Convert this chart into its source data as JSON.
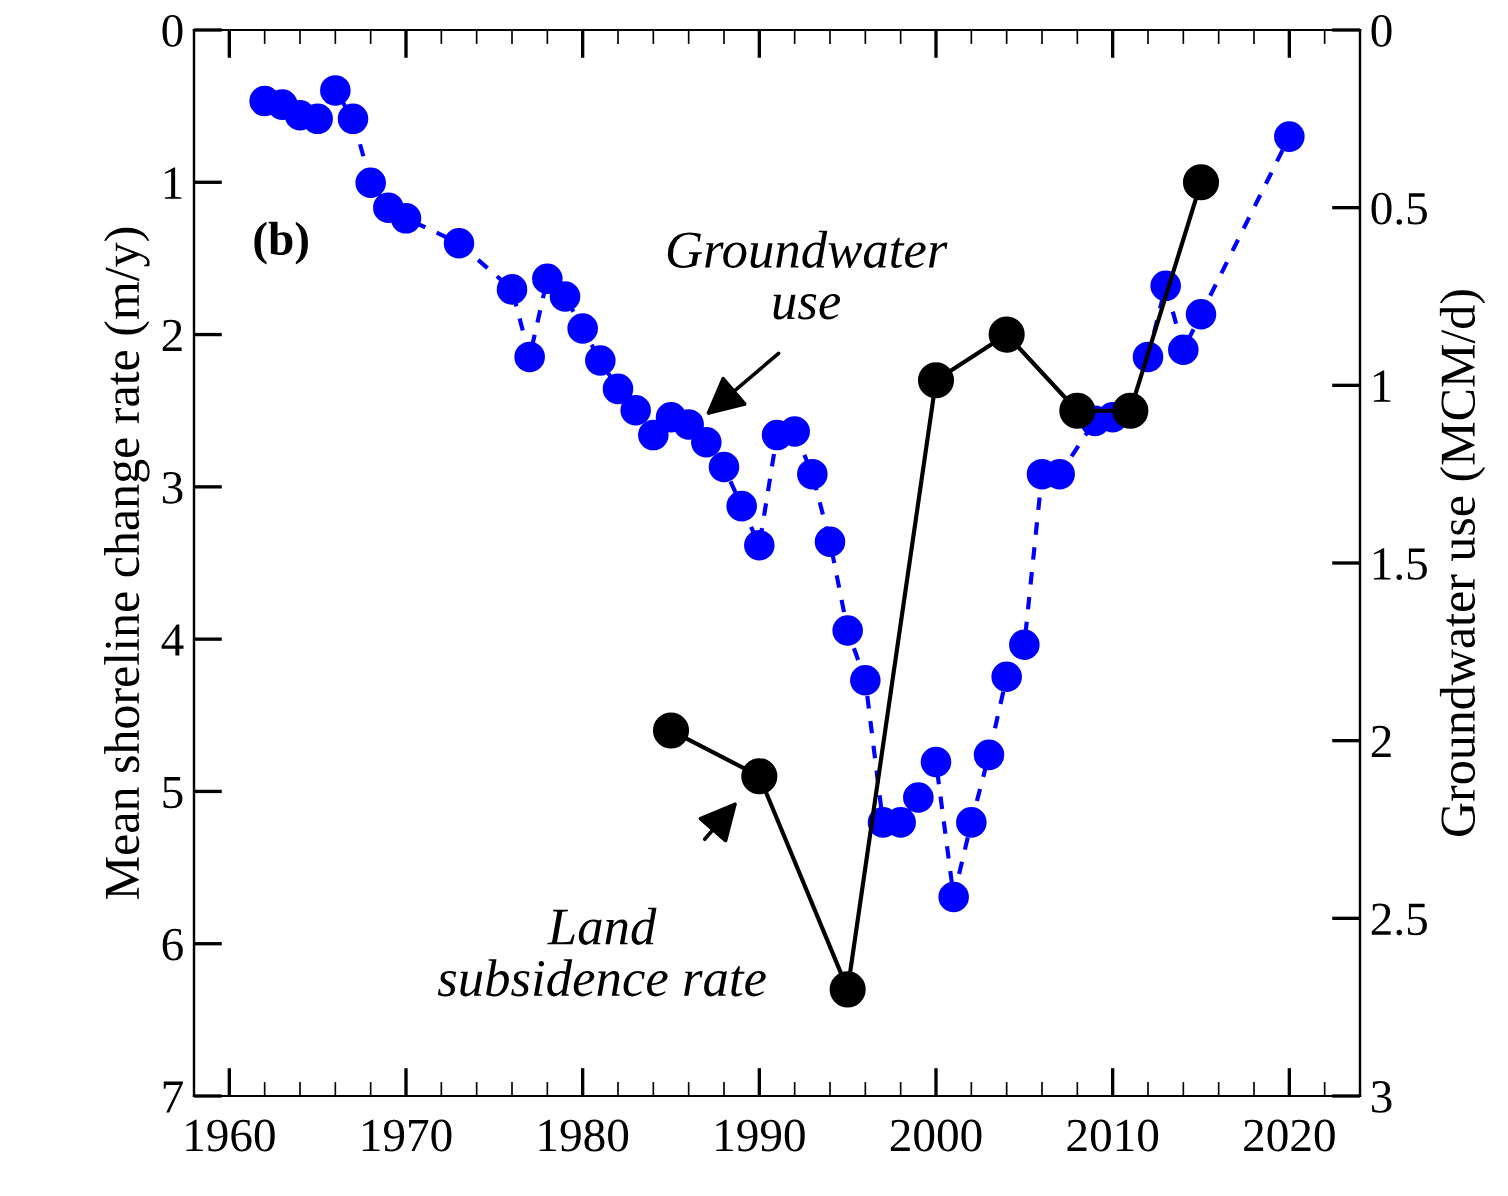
{
  "chart_data": {
    "type": "line",
    "xlabel": null,
    "ylabel": "Mean shoreline change rate (m/y)",
    "y2label": "Groundwater use (MCM/d)",
    "xlim": [
      1958,
      2024
    ],
    "xticks": [
      1960,
      1970,
      1980,
      1990,
      2000,
      2010,
      2020
    ],
    "ylim": [
      7,
      0
    ],
    "yticks": [
      0,
      1,
      2,
      3,
      4,
      5,
      6,
      7
    ],
    "y2lim": [
      3,
      0
    ],
    "y2ticks": [
      0,
      0.5,
      1,
      1.5,
      2,
      2.5,
      3
    ],
    "grid": false,
    "legend": false,
    "series": [
      {
        "color": "#0000ff",
        "axis": "y2",
        "marker": "circle",
        "line_style": "dashed",
        "x": [
          1962,
          1963,
          1964,
          1965,
          1966,
          1967,
          1968,
          1969,
          1970,
          1973,
          1976,
          1977,
          1978,
          1979,
          1980,
          1981,
          1982,
          1983,
          1984,
          1985,
          1986,
          1987,
          1988,
          1989,
          1990,
          1991,
          1992,
          1993,
          1994,
          1995,
          1996,
          1997,
          1998,
          1999,
          2000,
          2001,
          2002,
          2003,
          2004,
          2005,
          2006,
          2007,
          2009,
          2010,
          2011,
          2012,
          2013,
          2014,
          2015,
          2020
        ],
        "values": [
          0.2,
          0.21,
          0.24,
          0.25,
          0.17,
          0.25,
          0.43,
          0.5,
          0.53,
          0.6,
          0.73,
          0.92,
          0.7,
          0.75,
          0.84,
          0.93,
          1.01,
          1.07,
          1.14,
          1.09,
          1.11,
          1.16,
          1.23,
          1.34,
          1.45,
          1.14,
          1.13,
          1.25,
          1.44,
          1.69,
          1.83,
          2.23,
          2.23,
          2.16,
          2.06,
          2.44,
          2.23,
          2.04,
          1.82,
          1.73,
          1.25,
          1.25,
          1.1,
          1.09,
          null,
          0.92,
          0.72,
          0.9,
          0.8,
          0.3
        ]
      },
      {
        "color": "#000000",
        "axis": "y",
        "marker": "circle",
        "line_style": "solid",
        "x": [
          1985,
          1990,
          1995,
          2000,
          2004,
          2008,
          2011,
          2015
        ],
        "values": [
          4.6,
          4.9,
          6.3,
          2.3,
          2.0,
          2.5,
          2.5,
          1.0
        ]
      }
    ],
    "annotations": [
      "(b)",
      "Groundwater\nuse",
      {
        "text": "Land\nsubsidence rate",
        "x": 1990,
        "y": 4.9
      }
    ]
  }
}
